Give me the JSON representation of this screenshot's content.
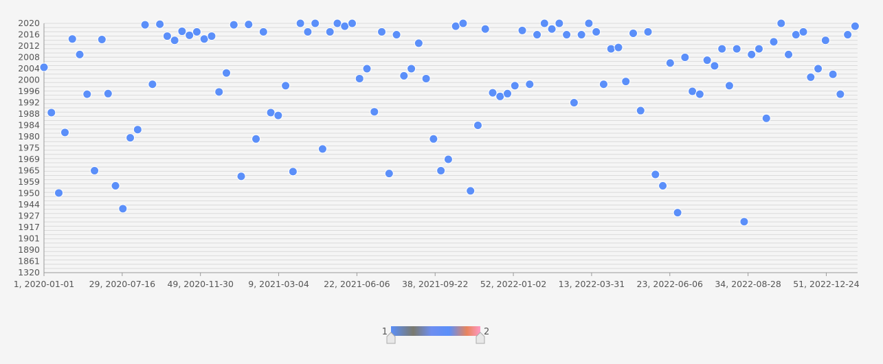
{
  "chart_data": {
    "type": "scatter",
    "title": "",
    "xlabel": "",
    "ylabel": "",
    "grid": true,
    "legend": "bottom-center",
    "x_ticks": [
      "1, 2020-01-01",
      "29, 2020-07-16",
      "49, 2020-11-30",
      "9, 2021-03-04",
      "22, 2021-06-06",
      "38, 2021-09-22",
      "52, 2022-01-02",
      "13, 2022-03-31",
      "23, 2022-06-06",
      "34, 2022-08-28",
      "51, 2022-12-24"
    ],
    "y_categories": [
      "1320",
      "1861",
      "1890",
      "1901",
      "1917",
      "1927",
      "1944",
      "1950",
      "1959",
      "1965",
      "1969",
      "1975",
      "1980",
      "1984",
      "1988",
      "1992",
      "1996",
      "2000",
      "2004",
      "2008",
      "2012",
      "2016",
      "2020"
    ],
    "visual_map": {
      "min": 1,
      "max": 2,
      "min_label": "1",
      "max_label": "2",
      "colors": [
        "#5b8ff9",
        "#7a7a6e",
        "#6d8ef0",
        "#5b8ff9",
        "#e8845c",
        "#ff99c3"
      ]
    },
    "colors": {
      "default_point": "#5b8ff9",
      "highlight_point": "#ff99c3"
    },
    "series": [
      {
        "value": 1,
        "points": [
          [
            0.0,
            2004.5
          ],
          [
            0.6,
            1988.5
          ],
          [
            1.2,
            1950.3
          ],
          [
            1.7,
            1981.5
          ],
          [
            2.3,
            2014.5
          ],
          [
            2.9,
            2009
          ],
          [
            3.5,
            1995
          ],
          [
            4.1,
            1965
          ],
          [
            4.7,
            2014.3
          ],
          [
            5.2,
            1995.2
          ],
          [
            5.8,
            1956
          ],
          [
            6.4,
            1938
          ],
          [
            7,
            1979.5
          ],
          [
            7.6,
            1982.5
          ],
          [
            8.2,
            2019.5
          ],
          [
            8.8,
            1998.5
          ],
          [
            9.4,
            2019.7
          ],
          [
            10,
            2015.5
          ],
          [
            10.6,
            2014
          ],
          [
            11.2,
            2017.2
          ],
          [
            11.8,
            2015.8
          ],
          [
            12.4,
            2017
          ],
          [
            13,
            2014.5
          ],
          [
            13.6,
            2015.5
          ],
          [
            14.2,
            1995.8
          ],
          [
            14.8,
            2002.5
          ],
          [
            15.4,
            2019.5
          ],
          [
            16,
            1962
          ],
          [
            16.6,
            2019.6
          ],
          [
            17.2,
            1979
          ],
          [
            17.8,
            2017
          ],
          [
            18.4,
            1988.5
          ],
          [
            19,
            1987.5
          ],
          [
            19.6,
            1998
          ],
          [
            20.2,
            1964.5
          ],
          [
            20.8,
            2020.5
          ],
          [
            21.4,
            2017
          ],
          [
            22,
            2020.5
          ],
          [
            22.6,
            1974.5
          ],
          [
            23.2,
            2017
          ],
          [
            23.8,
            2020.5
          ],
          [
            24.4,
            2019
          ],
          [
            25,
            2020.5
          ],
          [
            25.6,
            2000.5
          ],
          [
            26.2,
            2004
          ],
          [
            26.8,
            1988.8
          ],
          [
            27.4,
            2017
          ],
          [
            28,
            1963.5
          ],
          [
            28.6,
            2016
          ],
          [
            29.2,
            2001.5
          ],
          [
            29.8,
            2004
          ],
          [
            30.4,
            2013
          ],
          [
            31,
            2000.5
          ],
          [
            31.6,
            1979
          ],
          [
            32.2,
            1965
          ],
          [
            32.8,
            1969
          ],
          [
            33.4,
            2019
          ],
          [
            34,
            2020.5
          ],
          [
            34.6,
            1952
          ],
          [
            35.2,
            1984
          ],
          [
            35.8,
            2018
          ],
          [
            36.4,
            1995.5
          ],
          [
            37,
            1994.2
          ],
          [
            37.6,
            1995.2
          ],
          [
            38.2,
            1998
          ],
          [
            38.8,
            2017.5
          ],
          [
            39.4,
            1998.5
          ],
          [
            40,
            2016
          ],
          [
            40.6,
            2020.5
          ],
          [
            41.2,
            2018
          ],
          [
            41.8,
            2020.5
          ],
          [
            42.4,
            2016
          ],
          [
            43,
            1992
          ],
          [
            43.6,
            2016
          ],
          [
            44.2,
            2020.5
          ],
          [
            44.8,
            2017
          ],
          [
            45.4,
            1998.5
          ],
          [
            46,
            2011
          ],
          [
            46.6,
            2011.5
          ],
          [
            47.2,
            1999.5
          ],
          [
            47.8,
            2016.5
          ],
          [
            48.4,
            1989.2
          ],
          [
            49,
            2017
          ],
          [
            49.6,
            1963
          ],
          [
            50.2,
            1956
          ],
          [
            50.8,
            2006
          ],
          [
            51.4,
            1932
          ],
          [
            52,
            2008
          ],
          [
            52.6,
            1996
          ],
          [
            53.2,
            1995
          ],
          [
            53.8,
            2007
          ],
          [
            54.4,
            2005
          ],
          [
            55,
            2011
          ],
          [
            55.6,
            1998
          ],
          [
            56.2,
            2011
          ],
          [
            56.8,
            1922
          ],
          [
            57.4,
            2009
          ],
          [
            58,
            2011
          ],
          [
            58.6,
            1986.5
          ],
          [
            59.2,
            2013.5
          ],
          [
            59.8,
            2020.5
          ],
          [
            60.4,
            2009
          ],
          [
            61,
            2016
          ],
          [
            61.6,
            2017
          ],
          [
            62.2,
            2001
          ],
          [
            62.8,
            2004
          ],
          [
            63.4,
            2014
          ],
          [
            64,
            2002
          ],
          [
            64.6,
            1995
          ],
          [
            65.2,
            2016
          ],
          [
            65.8,
            2019
          ]
        ]
      }
    ]
  }
}
